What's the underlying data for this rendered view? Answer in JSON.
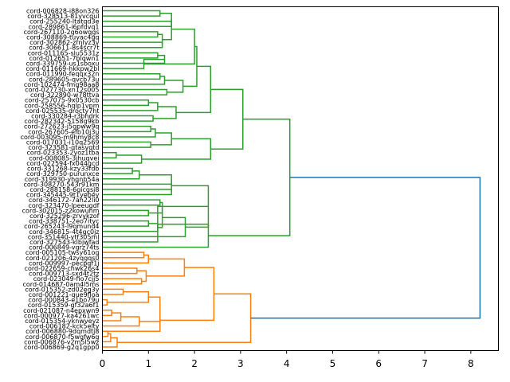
{
  "chart_data": {
    "type": "dendrogram",
    "title": "",
    "xlabel": "",
    "ylabel": "",
    "orientation": "left",
    "xlim": [
      0,
      8.6
    ],
    "xticks": [
      "0",
      "1",
      "2",
      "3",
      "4",
      "5",
      "6",
      "7",
      "8"
    ],
    "colors": {
      "cluster_a": "#2ca02c",
      "cluster_b": "#ff7f0e",
      "root": "#1f77b4"
    },
    "leaves": [
      "cord-006828-i88on326",
      "cord-328513-81yvcqul",
      "cord-255240-ltatqd3e",
      "cord-289861-i6pfdvq1",
      "cord-267110-2g6owqgs",
      "cord-308869-tuyac4gq",
      "cord-302862-zrnlyz3v",
      "cord-306611-8s4scr7t",
      "cord-011165-slu5531z",
      "cord-012651-7blqwn1",
      "cord-339759-us1sboxu",
      "cord-011669-hkkpw2bl",
      "cord-011990-feqqx32n",
      "cord-289605-qvcb73u",
      "cord-102474-fmq98aa8",
      "cord-027730-xn12s005",
      "cord-322890-w78ttva",
      "cord-257075-9x0530cb",
      "cord-258556-hqlp1vpm",
      "cord-025535-drocty7ht",
      "cord-330284-r3bhdrk",
      "cord-282342-5158g9kb",
      "cord-272623-j5gpww9q",
      "cord-267605-efb10j3u",
      "cord-003095-m9hmy8c8",
      "cord-017031-i10q2569",
      "cord-323581-qtasvqtd",
      "cord-023353-2yoz1tba",
      "cord-008085-3jhuqvei",
      "cord-022594-fx044gcd",
      "cord-331268-kzy33fdb",
      "cord-329750-purunxce",
      "cord-319930-yhqnb54a",
      "cord-308270-543r91km",
      "cord-288158-6gicgsj8",
      "cord-345445-9t1yebey",
      "cord-346172-7ah22li0",
      "cord-323470-lpeeugdf",
      "cord-302015-z2kowuhm",
      "cord-325296-zrvykzof",
      "cord-338751-2eo7ityc",
      "cord-265243-l9qmund4",
      "cord-346815-4t4gc0jz",
      "cord-351440-ytf305ml",
      "cord-327543-klbjwfad",
      "cord-006849-vgrz74ts",
      "cord-005105-twsy61oq",
      "cord-021206-4zyqgqs0",
      "cord-009997-pecpqf1j",
      "cord-022659-chwk26s4",
      "cord-009713-sxd4t2tz",
      "cord-023049-fio7cjj5",
      "cord-014687-0am4l5ms",
      "cord-015352-zd02eg3y",
      "cord-001221-que9floa",
      "cord-000843-e1bo79u",
      "cord-015359-gf32a6f1",
      "cord-021087-n4epxwn9",
      "cord-000977-ka4261wc",
      "cord-015354-yknwveyz",
      "cord-006182-kck5elty",
      "cord-006880-9dqmdtj8",
      "cord-006870-f5wgfw6g",
      "cord-006876-v2m5l5wz",
      "cord-006869-g2q1gpp0"
    ],
    "merges_summary": [
      {
        "cluster": "green",
        "leaves": "cord-006828-i88on326 … cord-006849-vgrz74ts",
        "height": 4.07
      },
      {
        "cluster": "orange",
        "leaves": "cord-005105-twsy61oq … cord-006869-g2q1gpp0",
        "height": 3.22
      },
      {
        "cluster": "root",
        "height": 8.2
      }
    ]
  }
}
